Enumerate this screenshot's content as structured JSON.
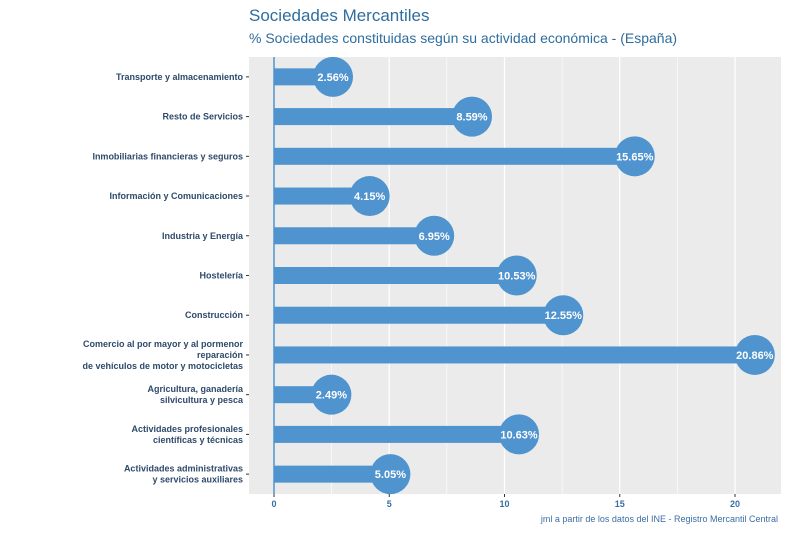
{
  "chart_data": {
    "type": "bar",
    "orientation": "horizontal",
    "title": "Sociedades Mercantiles",
    "subtitle": "% Sociedades constituidas según su actividad económica - (España)",
    "caption": "jml a partir de los datos del INE - Registro Mercantil Central",
    "xlim": [
      0,
      22.5
    ],
    "x_ticks": [
      "0",
      "5",
      "10",
      "15",
      "20"
    ],
    "x_tick_values": [
      0,
      5,
      10,
      15,
      20
    ],
    "grid": true,
    "colors": {
      "bar": "#4f93cf",
      "panel": "#ebebeb",
      "grid": "#ffffff",
      "axis": "#3a6ea5"
    },
    "categories": [
      {
        "lines": [
          "Transporte y almacenamiento"
        ],
        "value": 2.56,
        "label": "2.56%"
      },
      {
        "lines": [
          "Resto de Servicios"
        ],
        "value": 8.59,
        "label": "8.59%"
      },
      {
        "lines": [
          "Inmobiliarias financieras y seguros"
        ],
        "value": 15.65,
        "label": "15.65%"
      },
      {
        "lines": [
          "Información y Comunicaciones"
        ],
        "value": 4.15,
        "label": "4.15%"
      },
      {
        "lines": [
          "Industria y Energía"
        ],
        "value": 6.95,
        "label": "6.95%"
      },
      {
        "lines": [
          "Hostelería"
        ],
        "value": 10.53,
        "label": "10.53%"
      },
      {
        "lines": [
          "Construcción"
        ],
        "value": 12.55,
        "label": "12.55%"
      },
      {
        "lines": [
          "Comercio al por mayor y al pormenor",
          "reparación",
          "de vehículos de motor y motocicletas"
        ],
        "value": 20.86,
        "label": "20.86%"
      },
      {
        "lines": [
          "Agricultura, ganadería",
          "silvicultura y pesca"
        ],
        "value": 2.49,
        "label": "2.49%"
      },
      {
        "lines": [
          "Actividades profesionales",
          "científicas y técnicas"
        ],
        "value": 10.63,
        "label": "10.63%"
      },
      {
        "lines": [
          "Actividades administrativas",
          "y servicios auxiliares"
        ],
        "value": 5.05,
        "label": "5.05%"
      }
    ]
  }
}
